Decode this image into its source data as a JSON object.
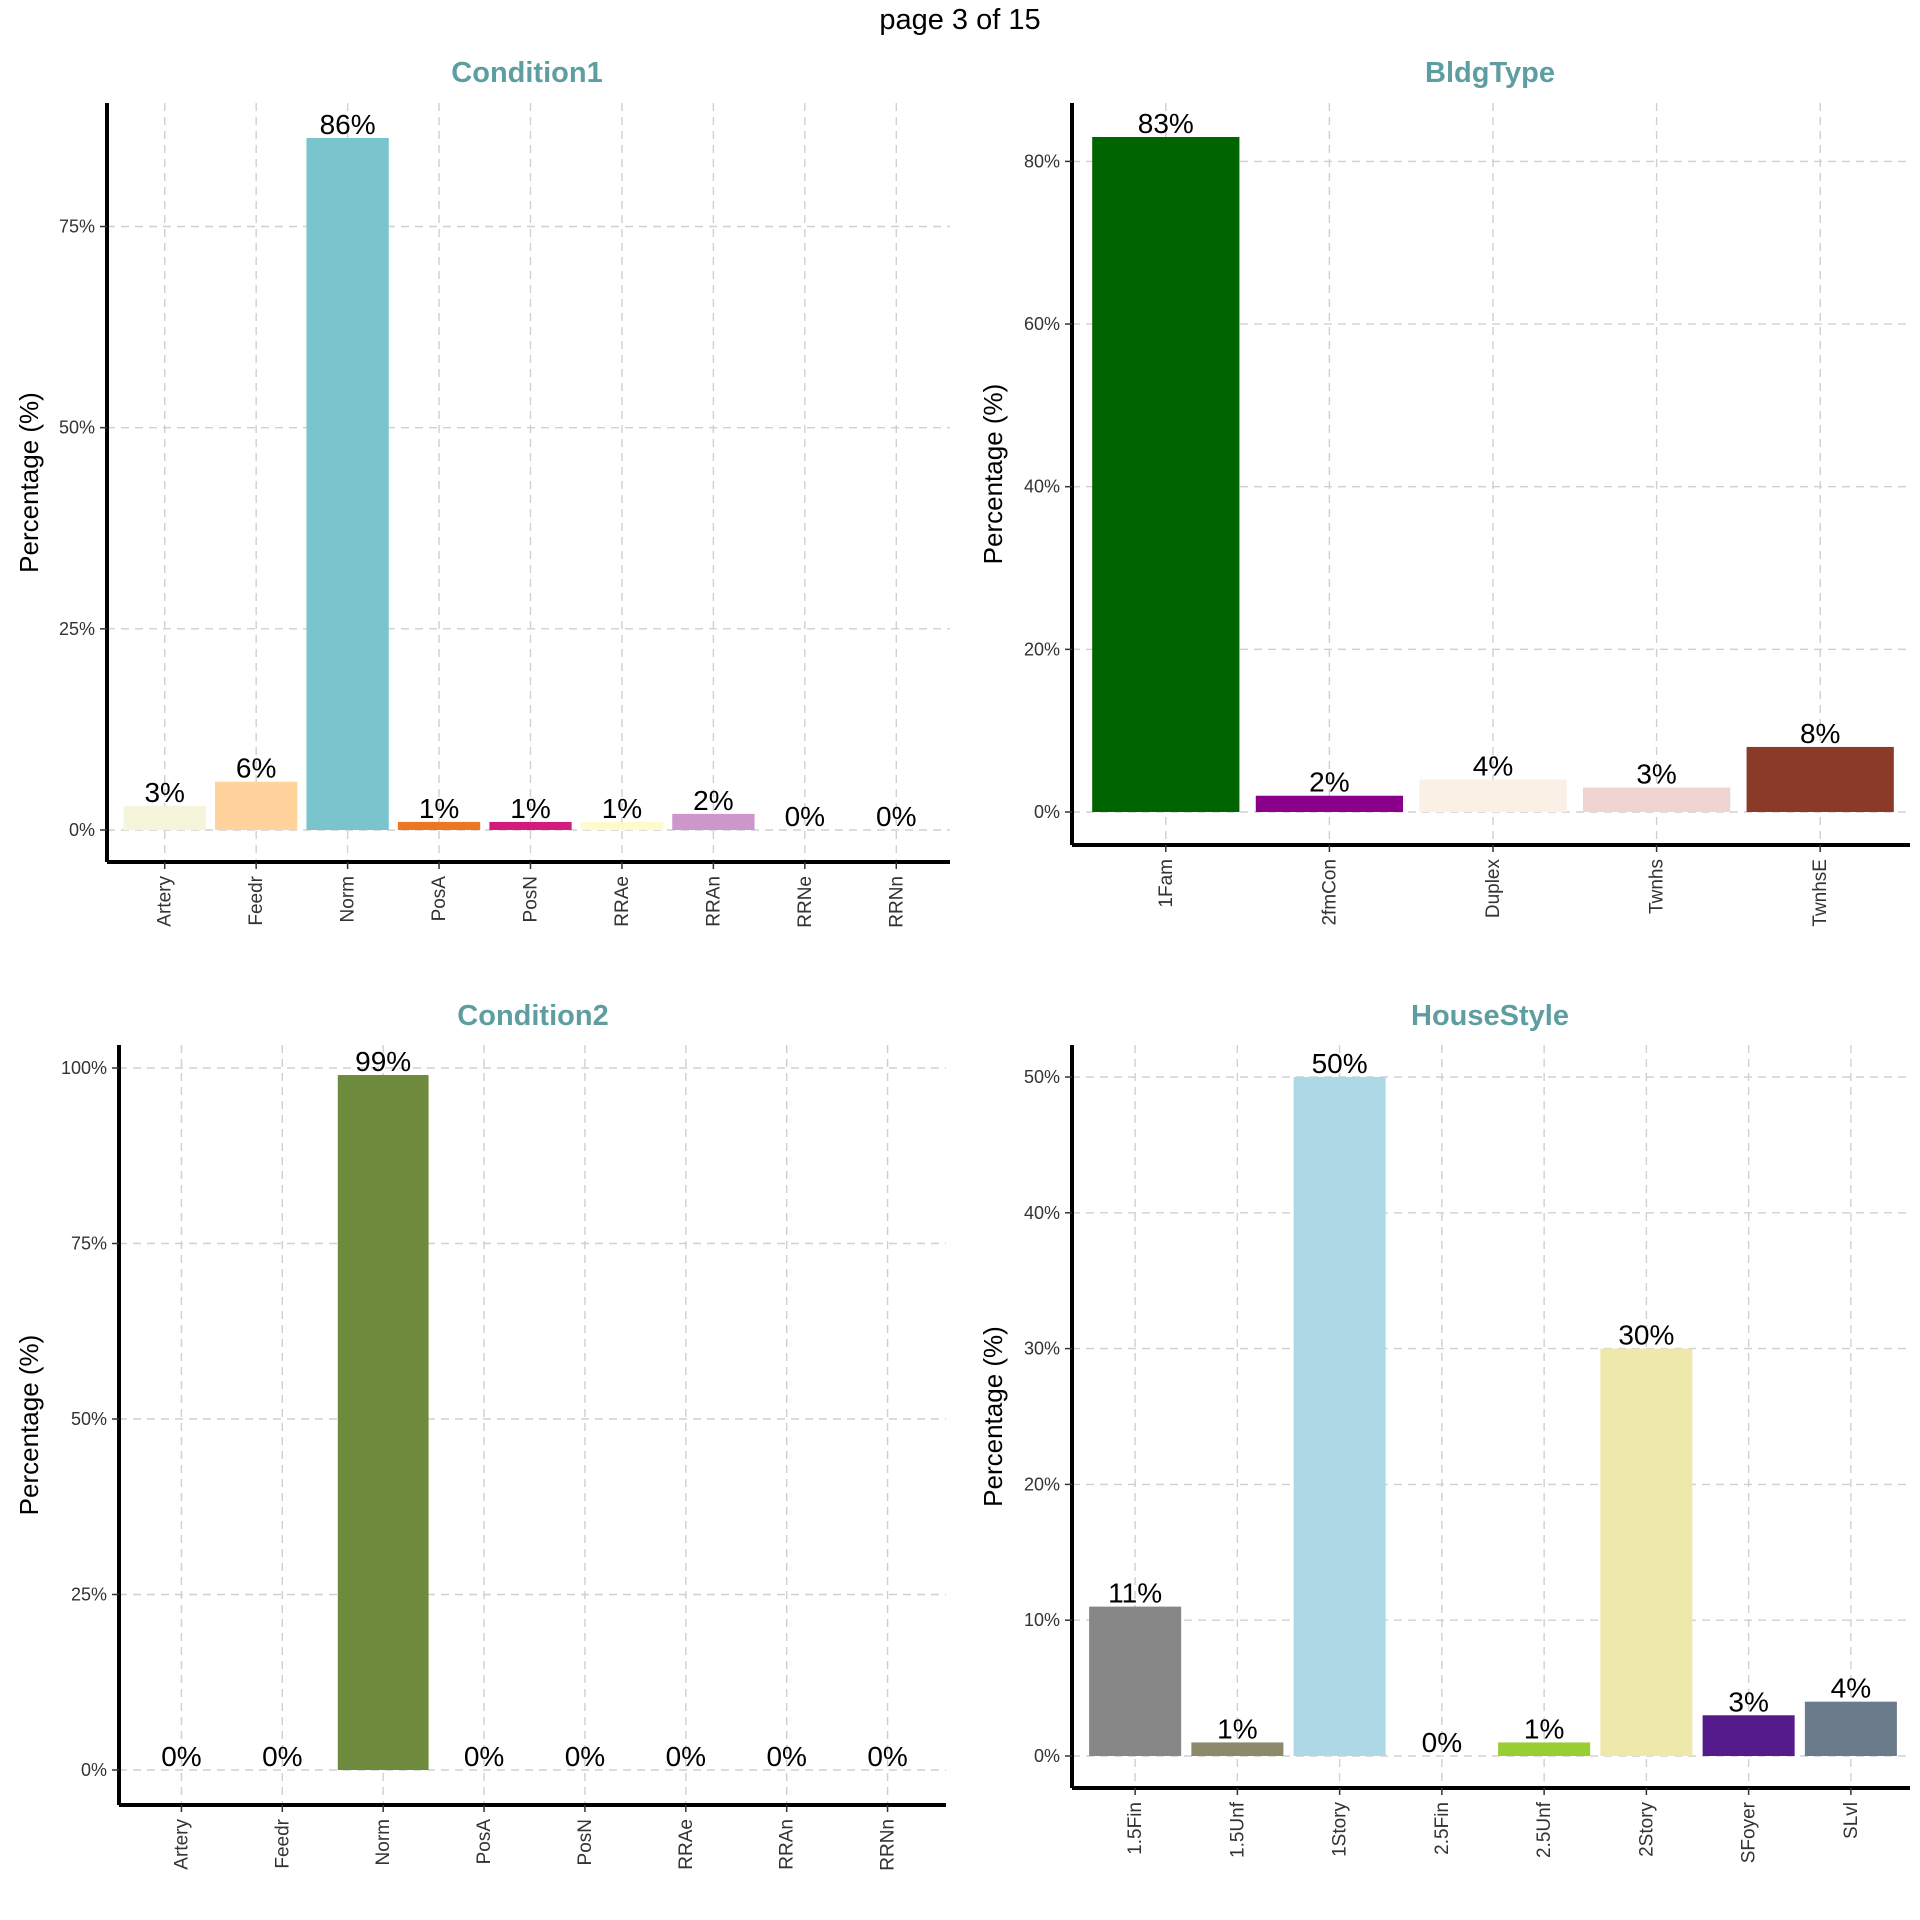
{
  "page": {
    "title": "page 3 of 15"
  },
  "chart_data": [
    {
      "type": "bar",
      "title": "Condition1",
      "ylabel": "Percentage (%)",
      "xlabel": "",
      "ylim": [
        0,
        90
      ],
      "yticks": [
        0,
        25,
        50,
        75
      ],
      "grid": true,
      "categories": [
        "Artery",
        "Feedr",
        "Norm",
        "PosA",
        "PosN",
        "RRAe",
        "RRAn",
        "RRNe",
        "RRNn"
      ],
      "values": [
        3,
        6,
        86,
        1,
        1,
        1,
        2,
        0,
        0
      ],
      "labels": [
        "3%",
        "6%",
        "86%",
        "1%",
        "1%",
        "1%",
        "2%",
        "0%",
        "0%"
      ],
      "colors": [
        "#f5f5dc",
        "#ffd39b",
        "#7ac5cd",
        "#ee7621",
        "#d41a7f",
        "#fffacd",
        "#cd96cd",
        "#f0f0f0",
        "#fafafa"
      ]
    },
    {
      "type": "bar",
      "title": "BldgType",
      "ylabel": "Percentage (%)",
      "xlabel": "",
      "ylim": [
        0,
        83
      ],
      "yticks": [
        0,
        20,
        40,
        60,
        80
      ],
      "grid": true,
      "categories": [
        "1Fam",
        "2fmCon",
        "Duplex",
        "Twnhs",
        "TwnhsE"
      ],
      "values": [
        83,
        2,
        4,
        3,
        8
      ],
      "labels": [
        "83%",
        "2%",
        "4%",
        "3%",
        "8%"
      ],
      "colors": [
        "#006400",
        "#8b008b",
        "#faf0e6",
        "#eed5d2",
        "#8b3a2a"
      ]
    },
    {
      "type": "bar",
      "title": "Condition2",
      "ylabel": "Percentage (%)",
      "xlabel": "",
      "ylim": [
        0,
        103
      ],
      "yticks": [
        0,
        25,
        50,
        75,
        100
      ],
      "grid": true,
      "categories": [
        "Artery",
        "Feedr",
        "Norm",
        "PosA",
        "PosN",
        "RRAe",
        "RRAn",
        "RRNn"
      ],
      "values": [
        0,
        0,
        99,
        0,
        0,
        0,
        0,
        0
      ],
      "labels": [
        "0%",
        "0%",
        "99%",
        "0%",
        "0%",
        "0%",
        "0%",
        "0%"
      ],
      "colors": [
        "#fafafa",
        "#fafafa",
        "#6e8b3d",
        "#fafafa",
        "#fafafa",
        "#fafafa",
        "#fafafa",
        "#fafafa"
      ]
    },
    {
      "type": "bar",
      "title": "HouseStyle",
      "ylabel": "Percentage (%)",
      "xlabel": "",
      "ylim": [
        0,
        50
      ],
      "yticks": [
        0,
        10,
        20,
        30,
        40,
        50
      ],
      "grid": true,
      "categories": [
        "1.5Fin",
        "1.5Unf",
        "1Story",
        "2.5Fin",
        "2.5Unf",
        "2Story",
        "SFoyer",
        "SLvl"
      ],
      "values": [
        11,
        1,
        50,
        0,
        1,
        30,
        3,
        4
      ],
      "labels": [
        "11%",
        "1%",
        "50%",
        "0%",
        "1%",
        "30%",
        "3%",
        "4%"
      ],
      "colors": [
        "#878787",
        "#8b8b6b",
        "#add8e6",
        "#fafafa",
        "#9acd32",
        "#eee8aa",
        "#551a8b",
        "#6c7b8b"
      ]
    }
  ]
}
